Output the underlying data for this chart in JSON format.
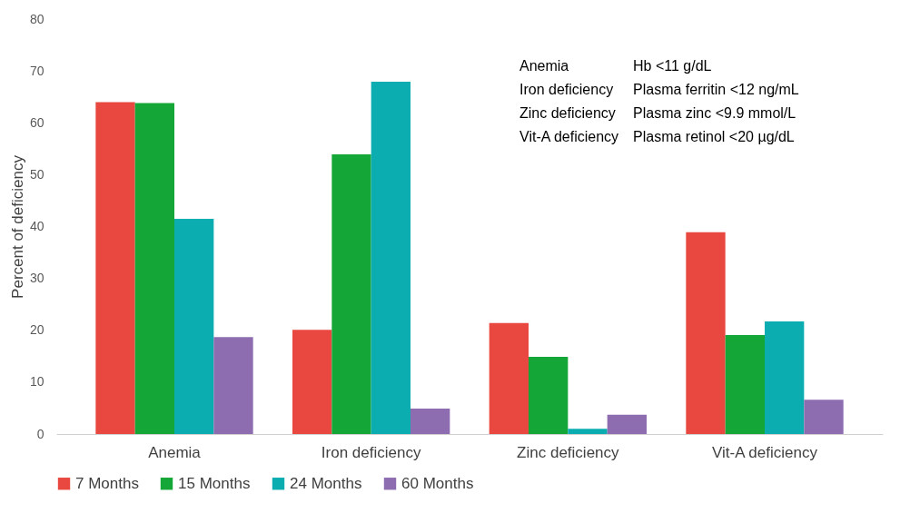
{
  "chart_data": {
    "type": "bar",
    "ylabel": "Percent of deficiency",
    "categories": [
      "Anemia",
      "Iron deficiency",
      "Zinc deficiency",
      "Vit-A deficiency"
    ],
    "series": [
      {
        "name": "7 Months",
        "color": "#e8483f",
        "values": [
          64,
          20.1,
          21.4,
          38.9
        ]
      },
      {
        "name": "15 Months",
        "color": "#14a637",
        "values": [
          63.8,
          53.9,
          14.9,
          19.1
        ]
      },
      {
        "name": "24 Months",
        "color": "#0badb1",
        "values": [
          41.5,
          67.9,
          1,
          21.7
        ]
      },
      {
        "name": "60 Months",
        "color": "#8e6cb0",
        "values": [
          18.7,
          4.9,
          3.7,
          6.6
        ]
      }
    ],
    "ylim": [
      0,
      80
    ],
    "yticks": [
      0,
      10,
      20,
      30,
      40,
      50,
      60,
      70,
      80
    ],
    "grid": false,
    "legend": "bottom",
    "annotations": [
      "Anemia",
      "Hb <11 g/dL",
      "Iron deficiency",
      "Plasma ferritin <12 ng/mL",
      "Zinc deficiency",
      "Plasma zinc <9.9 mmol/L",
      "Vit-A deficiency",
      "Plasma retinol <20 µg/dL"
    ]
  }
}
